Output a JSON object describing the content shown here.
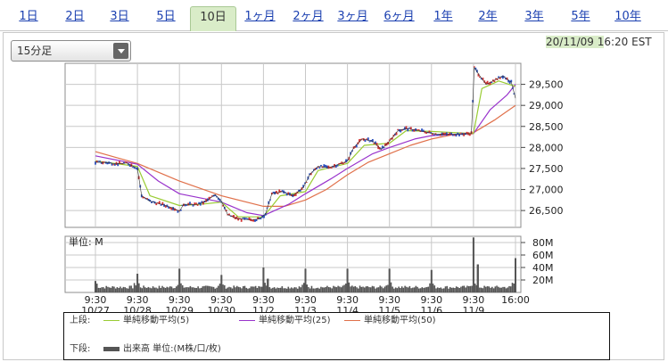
{
  "tabs": [
    {
      "label": "1日",
      "active": false
    },
    {
      "label": "2日",
      "active": false
    },
    {
      "label": "3日",
      "active": false
    },
    {
      "label": "5日",
      "active": false
    },
    {
      "label": "10日",
      "active": true
    },
    {
      "label": "1ヶ月",
      "active": false
    },
    {
      "label": "2ヶ月",
      "active": false
    },
    {
      "label": "3ヶ月",
      "active": false
    },
    {
      "label": "6ヶ月",
      "active": false
    },
    {
      "label": "1年",
      "active": false
    },
    {
      "label": "2年",
      "active": false
    },
    {
      "label": "3年",
      "active": false
    },
    {
      "label": "5年",
      "active": false
    },
    {
      "label": "10年",
      "active": false
    }
  ],
  "interval_select": {
    "value": "15分足"
  },
  "timestamp": {
    "date": "20/11/09 1",
    "rest": "6:20 EST"
  },
  "colors": {
    "bg": "#ffffff",
    "grid": "#c8c8c8",
    "price": "#d33232",
    "price_down": "#2a4fbf",
    "sma5": "#99cc33",
    "sma25": "#9933cc",
    "sma50": "#e0704a",
    "volume": "#555555",
    "tab_active": "#d9ecc8"
  },
  "chart_data": {
    "type": "line",
    "x_categories": [
      "9:30\n10/27",
      "9:30\n10/28",
      "9:30\n10/29",
      "9:30\n10/30",
      "9:30\n11/2",
      "9:30\n11/3",
      "9:30\n11/4",
      "9:30\n11/5",
      "9:30\n11/6",
      "9:30\n11/9",
      "16:00"
    ],
    "price_axis": {
      "ticks": [
        "26,500",
        "27,000",
        "27,500",
        "28,000",
        "28,500",
        "29,000",
        "29,500"
      ],
      "tick_values": [
        26500,
        27000,
        27500,
        28000,
        28500,
        29000,
        29500
      ],
      "ylim": [
        26100,
        30000
      ]
    },
    "volume_axis": {
      "label": "単位: M",
      "ticks": [
        "20M",
        "40M",
        "60M",
        "80M"
      ],
      "tick_values": [
        20,
        40,
        60,
        80
      ],
      "ylim": [
        0,
        90
      ]
    },
    "price_series": [
      {
        "x": 0.0,
        "y": 27650
      },
      {
        "x": 0.25,
        "y": 27640
      },
      {
        "x": 0.5,
        "y": 27610
      },
      {
        "x": 0.75,
        "y": 27630
      },
      {
        "x": 1.0,
        "y": 27500
      },
      {
        "x": 1.1,
        "y": 26850
      },
      {
        "x": 1.3,
        "y": 26720
      },
      {
        "x": 1.6,
        "y": 26640
      },
      {
        "x": 1.85,
        "y": 26560
      },
      {
        "x": 2.0,
        "y": 26480
      },
      {
        "x": 2.1,
        "y": 26650
      },
      {
        "x": 2.4,
        "y": 26640
      },
      {
        "x": 2.6,
        "y": 26700
      },
      {
        "x": 2.85,
        "y": 26880
      },
      {
        "x": 3.0,
        "y": 26720
      },
      {
        "x": 3.15,
        "y": 26400
      },
      {
        "x": 3.4,
        "y": 26300
      },
      {
        "x": 3.7,
        "y": 26280
      },
      {
        "x": 3.9,
        "y": 26300
      },
      {
        "x": 4.05,
        "y": 26420
      },
      {
        "x": 4.2,
        "y": 26900
      },
      {
        "x": 4.45,
        "y": 26950
      },
      {
        "x": 4.7,
        "y": 26850
      },
      {
        "x": 4.95,
        "y": 27050
      },
      {
        "x": 5.1,
        "y": 27350
      },
      {
        "x": 5.3,
        "y": 27550
      },
      {
        "x": 5.55,
        "y": 27520
      },
      {
        "x": 5.8,
        "y": 27600
      },
      {
        "x": 6.0,
        "y": 27680
      },
      {
        "x": 6.15,
        "y": 28000
      },
      {
        "x": 6.35,
        "y": 28200
      },
      {
        "x": 6.6,
        "y": 28150
      },
      {
        "x": 6.8,
        "y": 27950
      },
      {
        "x": 7.0,
        "y": 28150
      },
      {
        "x": 7.2,
        "y": 28400
      },
      {
        "x": 7.4,
        "y": 28450
      },
      {
        "x": 7.7,
        "y": 28400
      },
      {
        "x": 7.95,
        "y": 28350
      },
      {
        "x": 8.1,
        "y": 28320
      },
      {
        "x": 8.4,
        "y": 28310
      },
      {
        "x": 8.7,
        "y": 28320
      },
      {
        "x": 8.95,
        "y": 28330
      },
      {
        "x": 9.02,
        "y": 29900
      },
      {
        "x": 9.15,
        "y": 29700
      },
      {
        "x": 9.3,
        "y": 29500
      },
      {
        "x": 9.5,
        "y": 29600
      },
      {
        "x": 9.7,
        "y": 29700
      },
      {
        "x": 9.9,
        "y": 29550
      },
      {
        "x": 10.0,
        "y": 29170
      }
    ],
    "sma5_series": [
      {
        "x": 0.0,
        "y": 27680
      },
      {
        "x": 1.0,
        "y": 27550
      },
      {
        "x": 1.3,
        "y": 26850
      },
      {
        "x": 2.0,
        "y": 26620
      },
      {
        "x": 2.5,
        "y": 26650
      },
      {
        "x": 3.0,
        "y": 26700
      },
      {
        "x": 3.4,
        "y": 26350
      },
      {
        "x": 4.0,
        "y": 26350
      },
      {
        "x": 4.4,
        "y": 26850
      },
      {
        "x": 5.0,
        "y": 26950
      },
      {
        "x": 5.3,
        "y": 27450
      },
      {
        "x": 6.0,
        "y": 27620
      },
      {
        "x": 6.4,
        "y": 28050
      },
      {
        "x": 7.0,
        "y": 28100
      },
      {
        "x": 7.4,
        "y": 28400
      },
      {
        "x": 8.0,
        "y": 28380
      },
      {
        "x": 9.0,
        "y": 28330
      },
      {
        "x": 9.2,
        "y": 29400
      },
      {
        "x": 9.6,
        "y": 29580
      },
      {
        "x": 10.0,
        "y": 29450
      }
    ],
    "sma25_series": [
      {
        "x": 0.0,
        "y": 27800
      },
      {
        "x": 1.0,
        "y": 27600
      },
      {
        "x": 1.5,
        "y": 27200
      },
      {
        "x": 2.0,
        "y": 26900
      },
      {
        "x": 3.0,
        "y": 26700
      },
      {
        "x": 3.6,
        "y": 26450
      },
      {
        "x": 4.0,
        "y": 26380
      },
      {
        "x": 4.6,
        "y": 26650
      },
      {
        "x": 5.0,
        "y": 26900
      },
      {
        "x": 5.6,
        "y": 27250
      },
      {
        "x": 6.0,
        "y": 27500
      },
      {
        "x": 6.6,
        "y": 27850
      },
      {
        "x": 7.0,
        "y": 28000
      },
      {
        "x": 7.6,
        "y": 28200
      },
      {
        "x": 8.0,
        "y": 28280
      },
      {
        "x": 9.0,
        "y": 28330
      },
      {
        "x": 9.4,
        "y": 28900
      },
      {
        "x": 9.8,
        "y": 29250
      },
      {
        "x": 10.0,
        "y": 29500
      }
    ],
    "sma50_series": [
      {
        "x": 0.0,
        "y": 27900
      },
      {
        "x": 1.0,
        "y": 27620
      },
      {
        "x": 2.0,
        "y": 27200
      },
      {
        "x": 3.0,
        "y": 26850
      },
      {
        "x": 4.0,
        "y": 26600
      },
      {
        "x": 4.5,
        "y": 26600
      },
      {
        "x": 5.0,
        "y": 26750
      },
      {
        "x": 5.5,
        "y": 27000
      },
      {
        "x": 6.0,
        "y": 27350
      },
      {
        "x": 6.5,
        "y": 27650
      },
      {
        "x": 7.0,
        "y": 27850
      },
      {
        "x": 7.5,
        "y": 28050
      },
      {
        "x": 8.0,
        "y": 28200
      },
      {
        "x": 8.5,
        "y": 28300
      },
      {
        "x": 9.0,
        "y": 28350
      },
      {
        "x": 9.5,
        "y": 28650
      },
      {
        "x": 10.0,
        "y": 29000
      }
    ],
    "volume_spikes": [
      {
        "x": 0.0,
        "y": 18
      },
      {
        "x": 1.0,
        "y": 30
      },
      {
        "x": 2.0,
        "y": 38
      },
      {
        "x": 3.0,
        "y": 28
      },
      {
        "x": 4.0,
        "y": 40
      },
      {
        "x": 4.1,
        "y": 22
      },
      {
        "x": 5.0,
        "y": 38
      },
      {
        "x": 6.0,
        "y": 38
      },
      {
        "x": 7.0,
        "y": 38
      },
      {
        "x": 8.0,
        "y": 36
      },
      {
        "x": 9.0,
        "y": 88
      },
      {
        "x": 9.1,
        "y": 45
      },
      {
        "x": 10.0,
        "y": 55
      }
    ],
    "volume_base": 6,
    "volume_close_spikes": [
      14,
      15,
      15,
      15,
      16,
      15,
      16,
      15,
      16,
      18
    ]
  },
  "legend": {
    "upper_label": "上段:",
    "lower_label": "下段:",
    "items": [
      {
        "name": "単純移動平均(5)"
      },
      {
        "name": "単純移動平均(25)"
      },
      {
        "name": "単純移動平均(50)"
      }
    ],
    "volume_item": "出来高 単位:(M株/口/枚)"
  }
}
